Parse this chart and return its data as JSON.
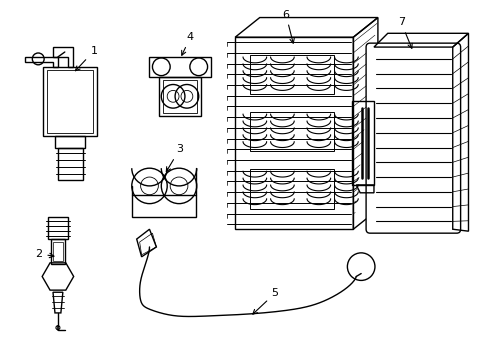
{
  "background_color": "#ffffff",
  "line_color": "#000000",
  "figsize": [
    4.89,
    3.6
  ],
  "dpi": 100
}
